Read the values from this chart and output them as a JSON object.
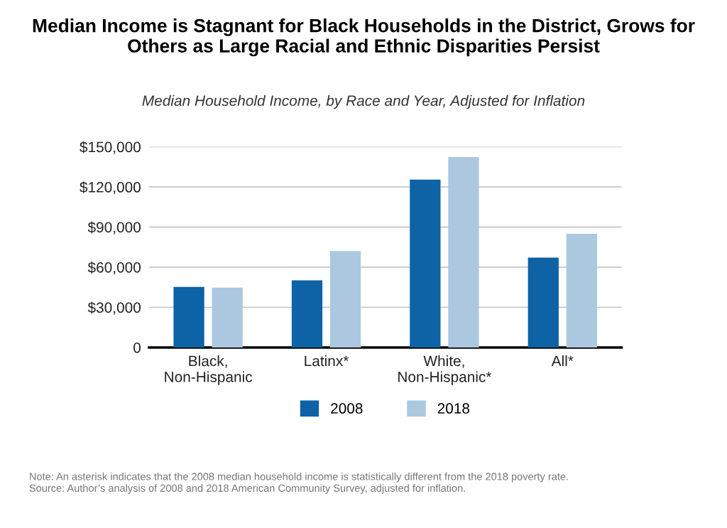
{
  "chart_data": {
    "type": "bar",
    "title": "Median Income is Stagnant for Black Households in the District, Grows for Others as Large Racial and Ethnic Disparities Persist",
    "subtitle": "Median Household Income, by Race and Year, Adjusted for Inflation",
    "categories": [
      "Black,\nNon-Hispanic",
      "Latinx*",
      "White,\nNon-Hispanic*",
      "All*"
    ],
    "series": [
      {
        "name": "2008",
        "color": "#0e62a6",
        "values": [
          45200,
          50200,
          125400,
          67200
        ]
      },
      {
        "name": "2018",
        "color": "#abc8e0",
        "values": [
          44700,
          72000,
          142300,
          84900
        ]
      }
    ],
    "ylim": [
      0,
      150000
    ],
    "yticks": [
      {
        "value": 0,
        "label": "0"
      },
      {
        "value": 30000,
        "label": "$30,000"
      },
      {
        "value": 60000,
        "label": "$60,000"
      },
      {
        "value": 90000,
        "label": "$90,000"
      },
      {
        "value": 120000,
        "label": "$120,000"
      },
      {
        "value": 150000,
        "label": "$150,000"
      }
    ],
    "grid": "y",
    "legend": "bottom",
    "annotations": [
      "Note: An asterisk indicates that the 2008 median household income is statistically different from the 2018 poverty rate.",
      "Source: Author’s analysis of 2008 and 2018 American Community Survey, adjusted for inflation."
    ]
  }
}
